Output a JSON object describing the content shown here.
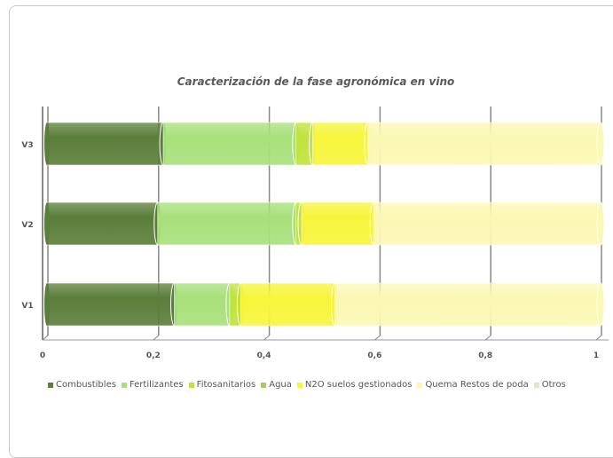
{
  "chart_data": {
    "type": "bar",
    "orientation": "horizontal",
    "stacked": "100%",
    "title": "Caracterización de la fase agronómica en vino",
    "categories": [
      "V1",
      "V2",
      "V3"
    ],
    "series": [
      {
        "name": "Combustibles",
        "color": "#5b7e3a",
        "values": [
          0.23,
          0.2,
          0.21
        ]
      },
      {
        "name": "Fertilizantes",
        "color": "#a8e07a",
        "values": [
          0.1,
          0.25,
          0.24
        ]
      },
      {
        "name": "Fitosanitarios",
        "color": "#c2e23a",
        "values": [
          0.02,
          0.01,
          0.03
        ]
      },
      {
        "name": "Agua",
        "color": "#a7c96e",
        "values": [
          0.0,
          0.0,
          0.0
        ]
      },
      {
        "name": "N2O suelos gestionados",
        "color": "#f7f53a",
        "values": [
          0.17,
          0.13,
          0.1
        ]
      },
      {
        "name": "Quema Restos de poda",
        "color": "#fbf8b4",
        "values": [
          0.48,
          0.41,
          0.42
        ]
      },
      {
        "name": "Otros",
        "color": "#e4e3c9",
        "values": [
          0.0,
          0.0,
          0.0
        ]
      }
    ],
    "xlim": [
      0,
      1
    ],
    "x_ticks": [
      "0",
      "0,2",
      "0,4",
      "0,6",
      "0,8",
      "1"
    ],
    "grid": true,
    "legend_position": "bottom"
  }
}
